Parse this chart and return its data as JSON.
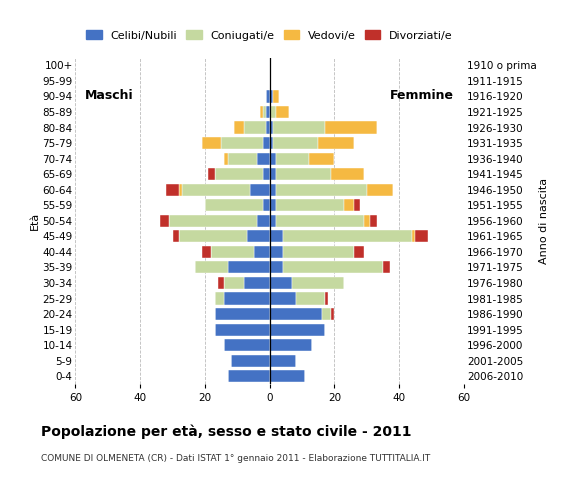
{
  "age_groups": [
    "0-4",
    "5-9",
    "10-14",
    "15-19",
    "20-24",
    "25-29",
    "30-34",
    "35-39",
    "40-44",
    "45-49",
    "50-54",
    "55-59",
    "60-64",
    "65-69",
    "70-74",
    "75-79",
    "80-84",
    "85-89",
    "90-94",
    "95-99",
    "100+"
  ],
  "birth_years": [
    "2006-2010",
    "2001-2005",
    "1996-2000",
    "1991-1995",
    "1986-1990",
    "1981-1985",
    "1976-1980",
    "1971-1975",
    "1966-1970",
    "1961-1965",
    "1956-1960",
    "1951-1955",
    "1946-1950",
    "1941-1945",
    "1936-1940",
    "1931-1935",
    "1926-1930",
    "1921-1925",
    "1916-1920",
    "1911-1915",
    "1910 o prima"
  ],
  "colors": {
    "celibe": "#4472c4",
    "coniugato": "#c5d9a0",
    "vedovo": "#f5b942",
    "divorziato": "#c0302a"
  },
  "maschi": {
    "celibe": [
      13,
      12,
      14,
      17,
      17,
      14,
      8,
      13,
      5,
      7,
      4,
      2,
      6,
      2,
      4,
      2,
      1,
      1,
      1,
      0,
      0
    ],
    "coniugato": [
      0,
      0,
      0,
      0,
      0,
      3,
      6,
      10,
      13,
      21,
      27,
      18,
      21,
      15,
      9,
      13,
      7,
      1,
      0,
      0,
      0
    ],
    "vedovo": [
      0,
      0,
      0,
      0,
      0,
      0,
      0,
      0,
      0,
      0,
      0,
      0,
      1,
      0,
      1,
      6,
      3,
      1,
      0,
      0,
      0
    ],
    "divorziato": [
      0,
      0,
      0,
      0,
      0,
      0,
      2,
      0,
      3,
      2,
      3,
      0,
      4,
      2,
      0,
      0,
      0,
      0,
      0,
      0,
      0
    ]
  },
  "femmine": {
    "celibe": [
      11,
      8,
      13,
      17,
      16,
      8,
      7,
      4,
      4,
      4,
      2,
      2,
      2,
      2,
      2,
      1,
      1,
      0,
      1,
      0,
      0
    ],
    "coniugato": [
      0,
      0,
      0,
      0,
      3,
      9,
      16,
      31,
      22,
      40,
      27,
      21,
      28,
      17,
      10,
      14,
      16,
      2,
      0,
      0,
      0
    ],
    "vedovo": [
      0,
      0,
      0,
      0,
      0,
      0,
      0,
      0,
      0,
      1,
      2,
      3,
      8,
      10,
      8,
      11,
      16,
      4,
      2,
      0,
      0
    ],
    "divorziato": [
      0,
      0,
      0,
      0,
      1,
      1,
      0,
      2,
      3,
      4,
      2,
      2,
      0,
      0,
      0,
      0,
      0,
      0,
      0,
      0,
      0
    ]
  },
  "title": "Popolazione per età, sesso e stato civile - 2011",
  "subtitle": "COMUNE DI OLMENETA (CR) - Dati ISTAT 1° gennaio 2011 - Elaborazione TUTTITALIA.IT",
  "label_maschi": "Maschi",
  "label_femmine": "Femmine",
  "ylabel_left": "Età",
  "ylabel_right": "Anno di nascita",
  "xlim": 60,
  "legend_labels": [
    "Celibi/Nubili",
    "Coniugati/e",
    "Vedovi/e",
    "Divorziati/e"
  ],
  "background_color": "#ffffff",
  "grid_color": "#aaaaaa"
}
